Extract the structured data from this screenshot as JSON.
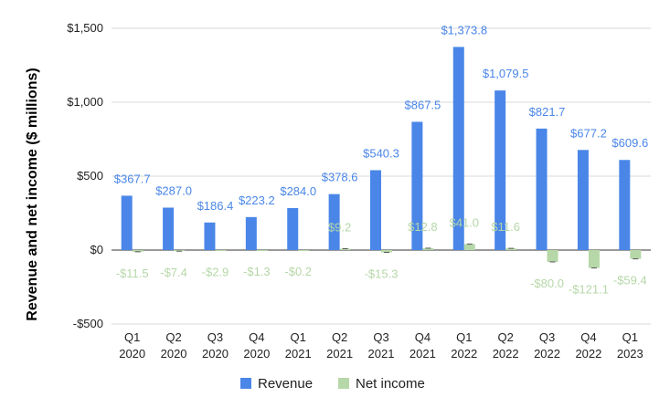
{
  "chart_data": {
    "type": "bar",
    "title": "",
    "xlabel": "",
    "ylabel": "Revenue and net income ($ millions)",
    "ylim": [
      -500,
      1500
    ],
    "yticks": [
      -500,
      0,
      500,
      1000,
      1500
    ],
    "ytick_labels": [
      "-$500",
      "$0",
      "$500",
      "$1,000",
      "$1,500"
    ],
    "grid": true,
    "legend_position": "bottom",
    "categories": [
      [
        "Q1",
        "2020"
      ],
      [
        "Q2",
        "2020"
      ],
      [
        "Q3",
        "2020"
      ],
      [
        "Q4",
        "2020"
      ],
      [
        "Q1",
        "2021"
      ],
      [
        "Q2",
        "2021"
      ],
      [
        "Q3",
        "2021"
      ],
      [
        "Q4",
        "2021"
      ],
      [
        "Q1",
        "2022"
      ],
      [
        "Q2",
        "2022"
      ],
      [
        "Q3",
        "2022"
      ],
      [
        "Q4",
        "2022"
      ],
      [
        "Q1",
        "2023"
      ]
    ],
    "series": [
      {
        "name": "Revenue",
        "color": "#4a86e8",
        "label_color": "#4a86e8",
        "values": [
          367.7,
          287.0,
          186.4,
          223.2,
          284.0,
          378.6,
          540.3,
          867.5,
          1373.8,
          1079.5,
          821.7,
          677.2,
          609.6
        ],
        "labels": [
          "$367.7",
          "$287.0",
          "$186.4",
          "$223.2",
          "$284.0",
          "$378.6",
          "$540.3",
          "$867.5",
          "$1,373.8",
          "$1,079.5",
          "$821.7",
          "$677.2",
          "$609.6"
        ]
      },
      {
        "name": "Net income",
        "color": "#b6d7a8",
        "label_color": "#b6d7a8",
        "values": [
          -11.5,
          -7.4,
          -2.9,
          -1.3,
          -0.2,
          9.2,
          -15.3,
          12.8,
          41.0,
          11.6,
          -80.0,
          -121.1,
          -59.4
        ],
        "labels": [
          "-$11.5",
          "-$7.4",
          "-$2.9",
          "-$1.3",
          "-$0.2",
          "$9.2",
          "-$15.3",
          "$12.8",
          "$41.0",
          "$11.6",
          "-$80.0",
          "-$121.1",
          "-$59.4"
        ]
      }
    ]
  }
}
